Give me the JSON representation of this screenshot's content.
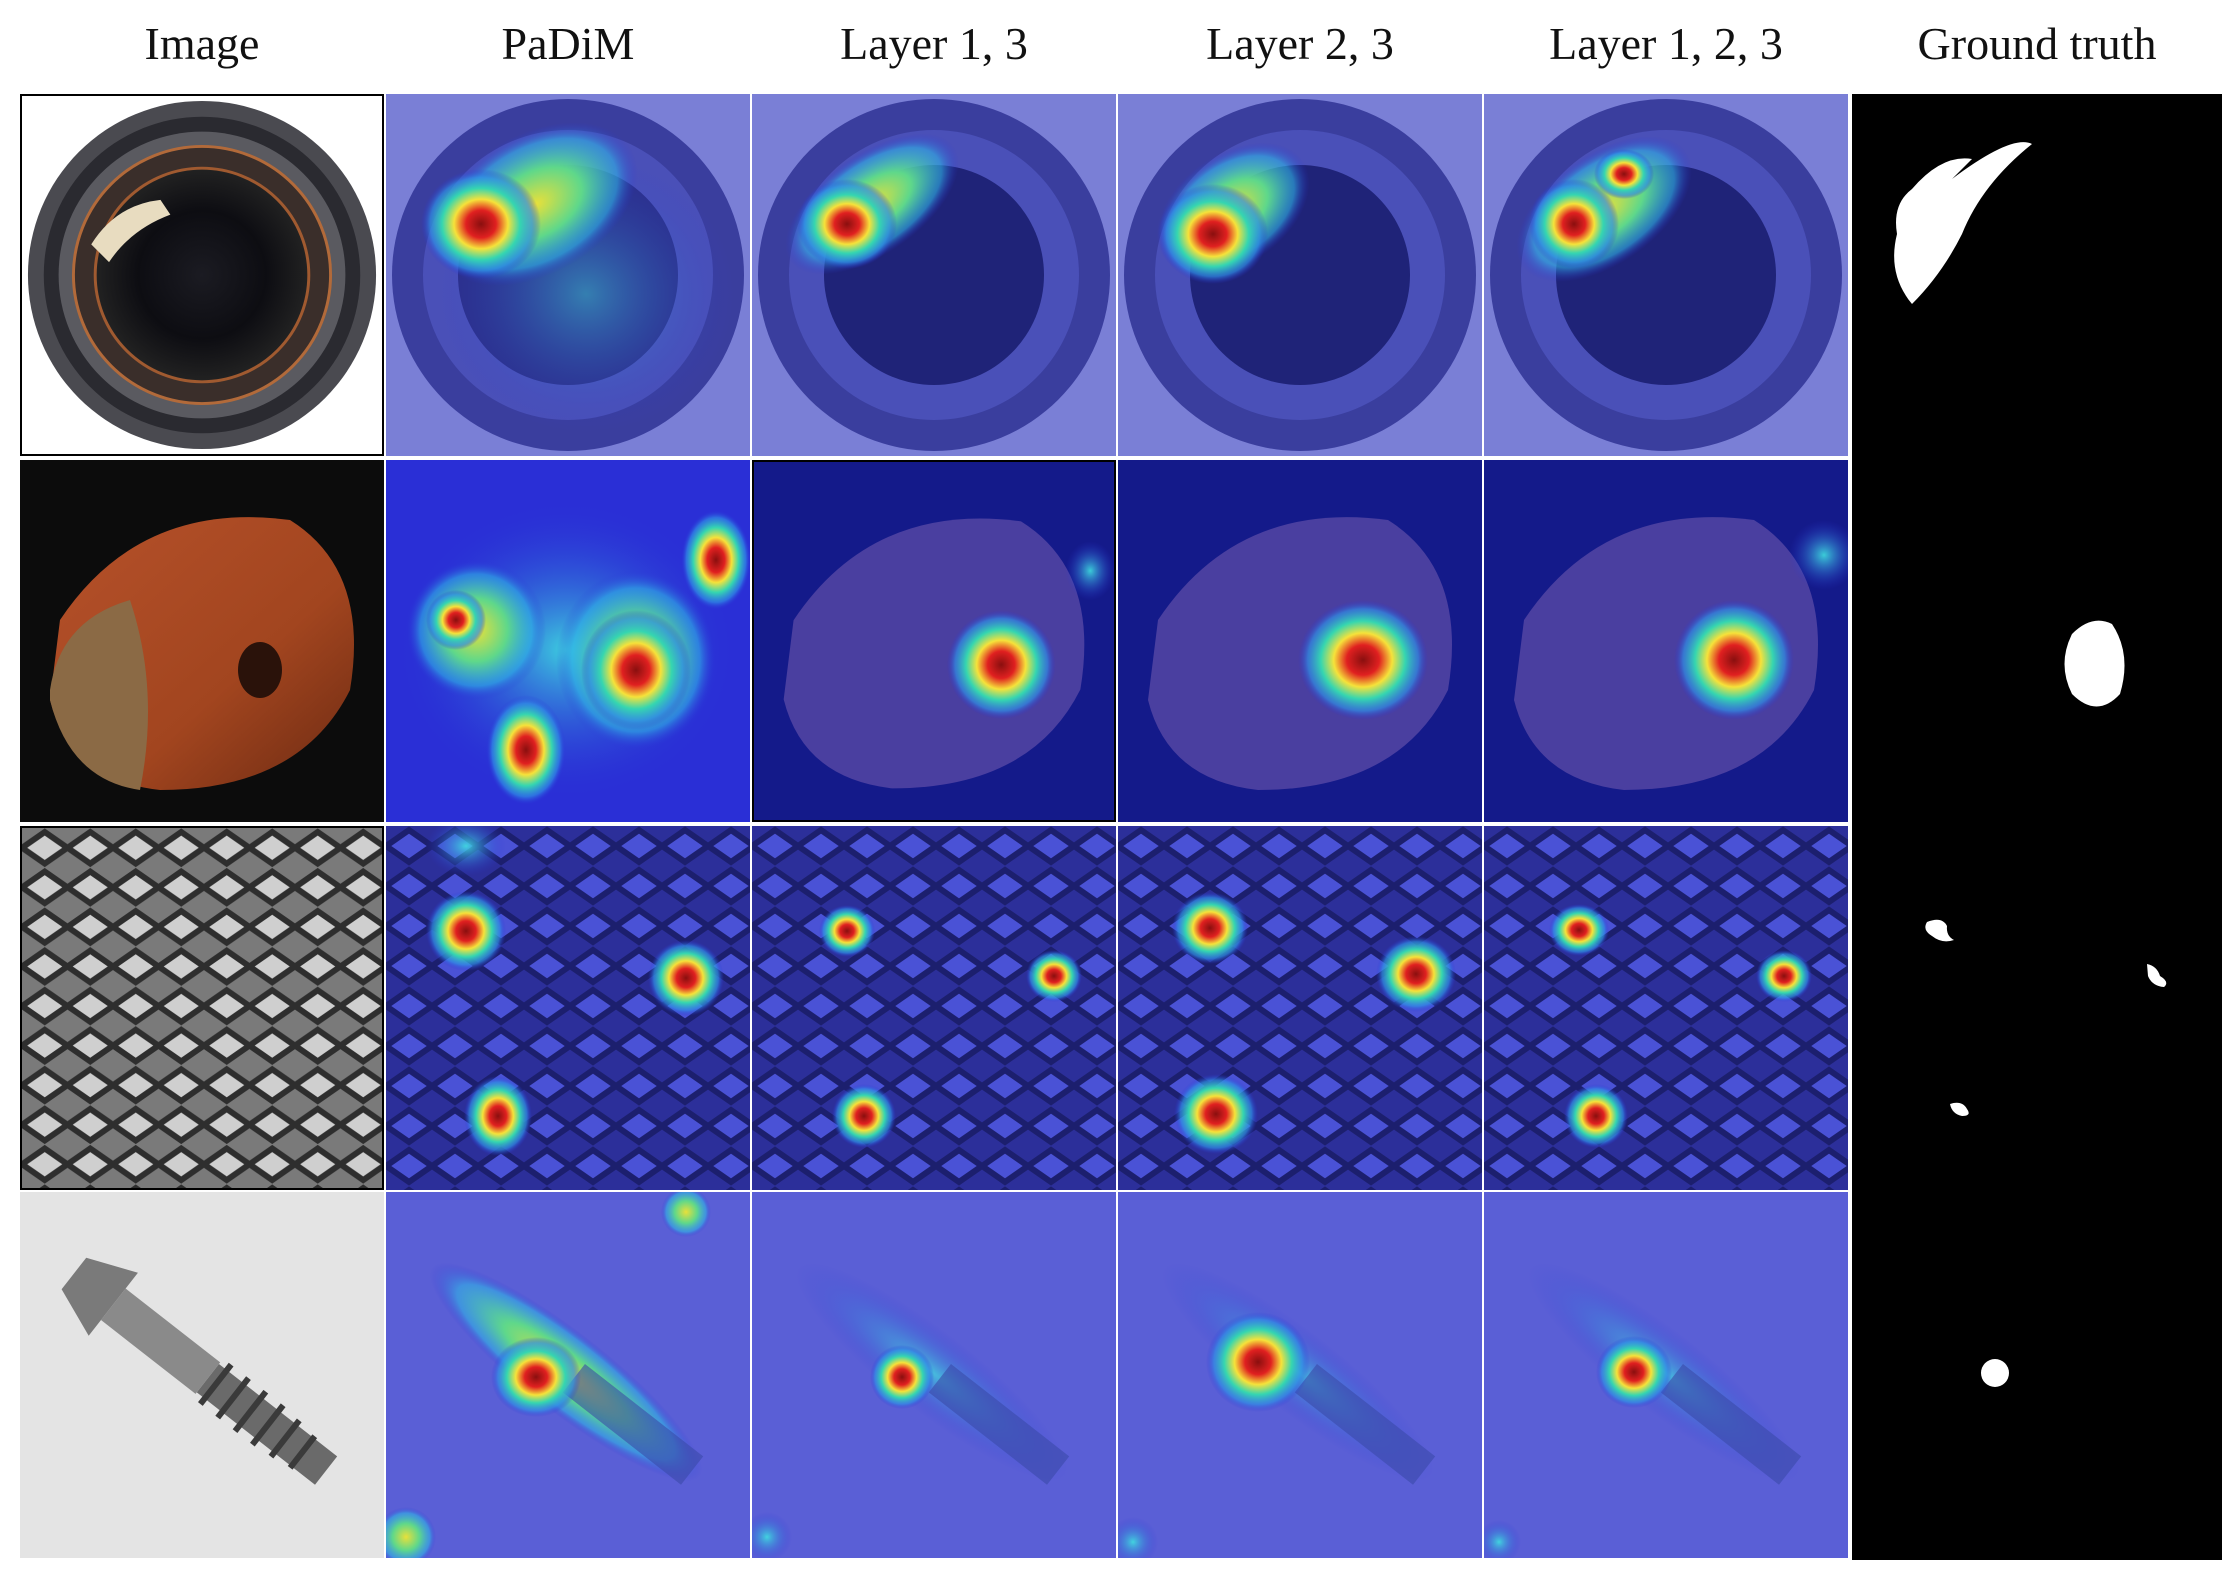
{
  "columns": [
    "Image",
    "PaDiM",
    "Layer 1, 3",
    "Layer 2, 3",
    "Layer 1, 2, 3",
    "Ground truth"
  ],
  "rows": [
    "bottle",
    "hazelnut",
    "metal-grid",
    "screw"
  ],
  "colors": {
    "heat_blue": "#2a2fd6",
    "heat_cyan": "#2fd8e6",
    "heat_yellow": "#f4e63a",
    "heat_red": "#d91e1e",
    "mask_white": "#ffffff",
    "mask_black": "#000000"
  }
}
